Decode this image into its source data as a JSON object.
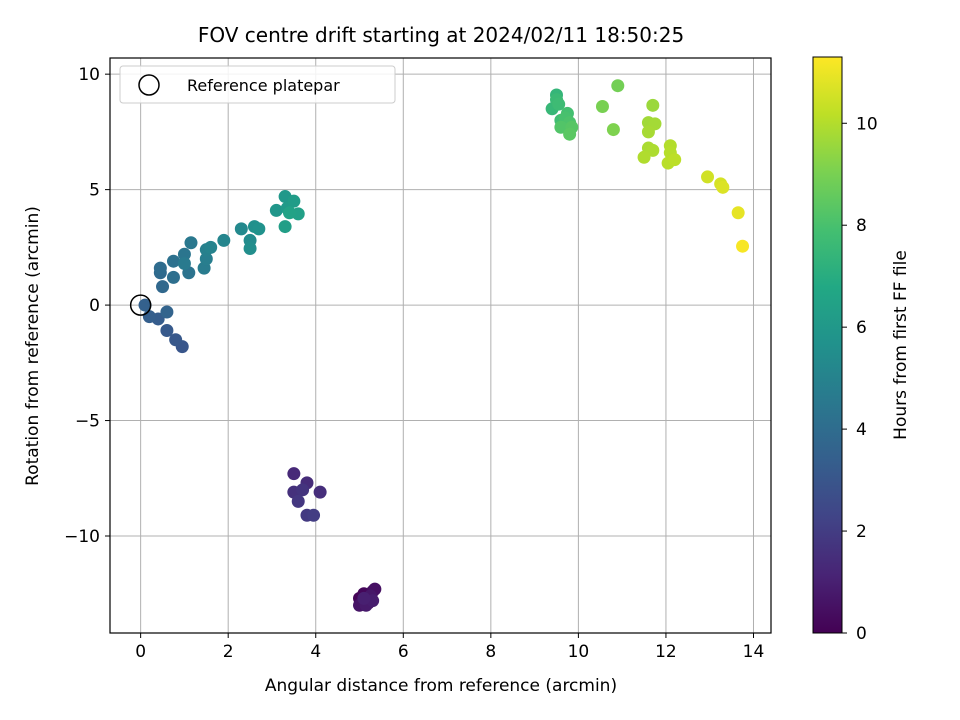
{
  "chart_data": {
    "type": "scatter",
    "title": "FOV centre drift starting at 2024/02/11 18:50:25",
    "xlabel": "Angular distance from reference (arcmin)",
    "ylabel": "Rotation from reference (arcmin)",
    "xlim": [
      -0.7,
      14.4
    ],
    "ylim": [
      -14.2,
      10.7
    ],
    "xticks": [
      0,
      2,
      4,
      6,
      8,
      10,
      12,
      14
    ],
    "xtick_labels": [
      "0",
      "2",
      "4",
      "6",
      "8",
      "10",
      "12",
      "14"
    ],
    "yticks": [
      -10,
      -5,
      0,
      5,
      10
    ],
    "ytick_labels": [
      "−10",
      "−5",
      "0",
      "5",
      "10"
    ],
    "grid": true,
    "legend": {
      "entries": [
        {
          "label": "Reference platepar",
          "marker": "open-circle"
        }
      ],
      "position": "top-left"
    },
    "reference_point": {
      "x": 0,
      "y": 0
    },
    "colorbar": {
      "label": "Hours from first FF file",
      "colormap": "viridis",
      "range": [
        0,
        11.3
      ],
      "ticks": [
        0,
        2,
        4,
        6,
        8,
        10
      ],
      "tick_labels": [
        "0",
        "2",
        "4",
        "6",
        "8",
        "10"
      ]
    },
    "points": [
      {
        "x": 5.0,
        "y": -12.7,
        "h": 0.1
      },
      {
        "x": 5.1,
        "y": -12.5,
        "h": 0.2
      },
      {
        "x": 5.2,
        "y": -12.9,
        "h": 0.3
      },
      {
        "x": 5.3,
        "y": -12.4,
        "h": 0.4
      },
      {
        "x": 5.35,
        "y": -12.3,
        "h": 0.5
      },
      {
        "x": 5.0,
        "y": -13.0,
        "h": 0.6
      },
      {
        "x": 5.25,
        "y": -12.6,
        "h": 0.7
      },
      {
        "x": 5.15,
        "y": -13.0,
        "h": 0.8
      },
      {
        "x": 5.3,
        "y": -12.8,
        "h": 0.9
      },
      {
        "x": 5.1,
        "y": -12.7,
        "h": 1.0
      },
      {
        "x": 3.5,
        "y": -7.3,
        "h": 1.3
      },
      {
        "x": 3.8,
        "y": -7.7,
        "h": 1.4
      },
      {
        "x": 4.1,
        "y": -8.1,
        "h": 1.5
      },
      {
        "x": 3.5,
        "y": -8.1,
        "h": 1.6
      },
      {
        "x": 3.7,
        "y": -8.0,
        "h": 1.7
      },
      {
        "x": 3.6,
        "y": -8.5,
        "h": 1.8
      },
      {
        "x": 3.8,
        "y": -9.1,
        "h": 1.9
      },
      {
        "x": 3.95,
        "y": -9.1,
        "h": 2.0
      },
      {
        "x": 0.95,
        "y": -1.8,
        "h": 3.0
      },
      {
        "x": 0.8,
        "y": -1.5,
        "h": 3.1
      },
      {
        "x": 0.6,
        "y": -1.1,
        "h": 3.2
      },
      {
        "x": 0.4,
        "y": -0.6,
        "h": 3.3
      },
      {
        "x": 0.2,
        "y": -0.5,
        "h": 3.4
      },
      {
        "x": 0.1,
        "y": 0.0,
        "h": 3.5
      },
      {
        "x": 0.6,
        "y": -0.3,
        "h": 3.6
      },
      {
        "x": 0.5,
        "y": 0.8,
        "h": 3.8
      },
      {
        "x": 0.45,
        "y": 1.4,
        "h": 3.9
      },
      {
        "x": 0.45,
        "y": 1.6,
        "h": 4.0
      },
      {
        "x": 0.75,
        "y": 1.2,
        "h": 4.1
      },
      {
        "x": 0.75,
        "y": 1.9,
        "h": 4.2
      },
      {
        "x": 1.1,
        "y": 1.4,
        "h": 4.3
      },
      {
        "x": 1.0,
        "y": 2.2,
        "h": 4.4
      },
      {
        "x": 1.15,
        "y": 2.7,
        "h": 4.5
      },
      {
        "x": 1.0,
        "y": 1.8,
        "h": 4.6
      },
      {
        "x": 1.45,
        "y": 1.6,
        "h": 4.7
      },
      {
        "x": 1.5,
        "y": 2.0,
        "h": 4.8
      },
      {
        "x": 1.5,
        "y": 2.4,
        "h": 4.9
      },
      {
        "x": 1.6,
        "y": 2.5,
        "h": 5.0
      },
      {
        "x": 1.9,
        "y": 2.8,
        "h": 5.1
      },
      {
        "x": 2.3,
        "y": 3.3,
        "h": 5.3
      },
      {
        "x": 2.5,
        "y": 2.8,
        "h": 5.4
      },
      {
        "x": 2.5,
        "y": 2.45,
        "h": 5.5
      },
      {
        "x": 2.6,
        "y": 3.4,
        "h": 5.6
      },
      {
        "x": 2.7,
        "y": 3.3,
        "h": 5.7
      },
      {
        "x": 3.1,
        "y": 4.1,
        "h": 5.9
      },
      {
        "x": 3.3,
        "y": 4.7,
        "h": 6.0
      },
      {
        "x": 3.35,
        "y": 4.2,
        "h": 6.1
      },
      {
        "x": 3.5,
        "y": 4.5,
        "h": 6.2
      },
      {
        "x": 3.3,
        "y": 3.4,
        "h": 6.3
      },
      {
        "x": 3.6,
        "y": 3.95,
        "h": 6.4
      },
      {
        "x": 3.4,
        "y": 4.0,
        "h": 6.5
      },
      {
        "x": 9.5,
        "y": 9.1,
        "h": 7.4
      },
      {
        "x": 9.4,
        "y": 8.5,
        "h": 7.5
      },
      {
        "x": 9.5,
        "y": 8.9,
        "h": 7.6
      },
      {
        "x": 9.55,
        "y": 8.7,
        "h": 7.7
      },
      {
        "x": 9.6,
        "y": 8.0,
        "h": 7.8
      },
      {
        "x": 9.75,
        "y": 8.3,
        "h": 7.9
      },
      {
        "x": 9.7,
        "y": 8.1,
        "h": 8.0
      },
      {
        "x": 9.8,
        "y": 7.9,
        "h": 8.1
      },
      {
        "x": 9.6,
        "y": 7.7,
        "h": 8.2
      },
      {
        "x": 9.85,
        "y": 7.7,
        "h": 8.3
      },
      {
        "x": 9.8,
        "y": 7.4,
        "h": 8.4
      },
      {
        "x": 10.9,
        "y": 9.5,
        "h": 8.9
      },
      {
        "x": 10.55,
        "y": 8.6,
        "h": 9.0
      },
      {
        "x": 10.8,
        "y": 7.6,
        "h": 9.1
      },
      {
        "x": 11.7,
        "y": 8.65,
        "h": 9.6
      },
      {
        "x": 11.6,
        "y": 7.9,
        "h": 9.7
      },
      {
        "x": 11.75,
        "y": 7.85,
        "h": 9.75
      },
      {
        "x": 11.6,
        "y": 7.5,
        "h": 9.8
      },
      {
        "x": 11.6,
        "y": 6.8,
        "h": 9.85
      },
      {
        "x": 11.7,
        "y": 6.7,
        "h": 9.9
      },
      {
        "x": 11.5,
        "y": 6.4,
        "h": 9.95
      },
      {
        "x": 12.1,
        "y": 6.9,
        "h": 10.0
      },
      {
        "x": 12.1,
        "y": 6.6,
        "h": 10.05
      },
      {
        "x": 12.05,
        "y": 6.15,
        "h": 10.1
      },
      {
        "x": 12.2,
        "y": 6.3,
        "h": 10.15
      },
      {
        "x": 12.95,
        "y": 5.55,
        "h": 10.5
      },
      {
        "x": 13.25,
        "y": 5.25,
        "h": 10.6
      },
      {
        "x": 13.3,
        "y": 5.1,
        "h": 10.7
      },
      {
        "x": 13.65,
        "y": 4.0,
        "h": 10.9
      },
      {
        "x": 13.75,
        "y": 2.55,
        "h": 11.2
      }
    ]
  }
}
